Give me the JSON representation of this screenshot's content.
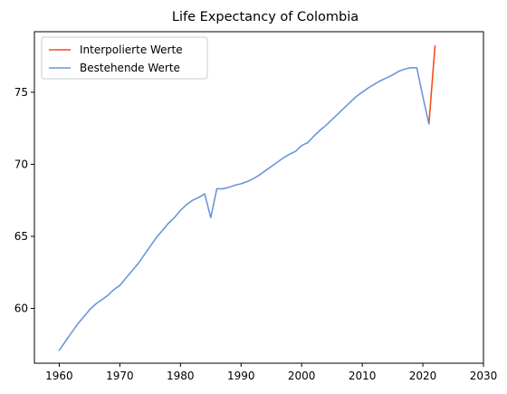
{
  "chart_data": {
    "type": "line",
    "title": "Life Expectancy of Colombia",
    "xlabel": "",
    "ylabel": "",
    "xlim": [
      1955.9,
      2030
    ],
    "ylim": [
      56.2,
      79.2
    ],
    "xticks": [
      1960,
      1970,
      1980,
      1990,
      2000,
      2010,
      2020,
      2030
    ],
    "yticks": [
      60,
      65,
      70,
      75
    ],
    "grid": false,
    "legend_position": "top-left",
    "series": [
      {
        "name": "Interpolierte Werte",
        "color": "#f24f1a",
        "x": [
          2021,
          2022
        ],
        "y": [
          72.8,
          78.2
        ]
      },
      {
        "name": "Bestehende Werte",
        "color": "#6c95dc",
        "x": [
          1960,
          1961,
          1962,
          1963,
          1964,
          1965,
          1966,
          1967,
          1968,
          1969,
          1970,
          1971,
          1972,
          1973,
          1974,
          1975,
          1976,
          1977,
          1978,
          1979,
          1980,
          1981,
          1982,
          1983,
          1984,
          1985,
          1986,
          1987,
          1988,
          1989,
          1990,
          1991,
          1992,
          1993,
          1994,
          1995,
          1996,
          1997,
          1998,
          1999,
          2000,
          2001,
          2002,
          2003,
          2004,
          2005,
          2006,
          2007,
          2008,
          2009,
          2010,
          2011,
          2012,
          2013,
          2014,
          2015,
          2016,
          2017,
          2018,
          2019,
          2020,
          2021
        ],
        "y": [
          57.1,
          57.7,
          58.3,
          58.9,
          59.4,
          59.9,
          60.3,
          60.6,
          60.9,
          61.3,
          61.6,
          62.1,
          62.6,
          63.1,
          63.7,
          64.3,
          64.9,
          65.4,
          65.9,
          66.3,
          66.8,
          67.2,
          67.5,
          67.7,
          67.95,
          66.3,
          68.3,
          68.3,
          68.4,
          68.55,
          68.65,
          68.8,
          69.0,
          69.25,
          69.55,
          69.85,
          70.15,
          70.45,
          70.7,
          70.9,
          71.3,
          71.5,
          71.95,
          72.35,
          72.7,
          73.1,
          73.5,
          73.9,
          74.3,
          74.7,
          75.0,
          75.3,
          75.55,
          75.8,
          76.0,
          76.2,
          76.45,
          76.6,
          76.7,
          76.7,
          74.7,
          72.8
        ]
      }
    ]
  }
}
